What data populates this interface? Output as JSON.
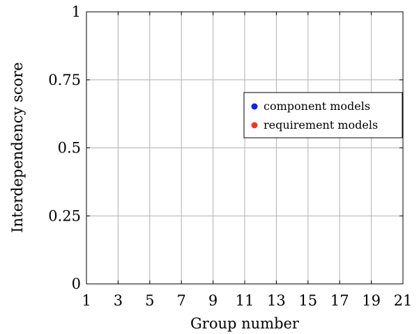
{
  "chart_data": {
    "type": "scatter",
    "title": "",
    "xlabel": "Group number",
    "ylabel": "Interdependency score",
    "xlim": [
      1,
      21
    ],
    "ylim": [
      0,
      1
    ],
    "xticks": [
      1,
      3,
      5,
      7,
      9,
      11,
      13,
      15,
      17,
      19,
      21
    ],
    "yticks": [
      0,
      0.25,
      0.5,
      0.75,
      1
    ],
    "ytick_labels": [
      "0",
      "0.25",
      "0.5",
      "0.75",
      "1"
    ],
    "grid": true,
    "legend_position": "right",
    "series": [
      {
        "name": "component models",
        "color": "#0a22f0",
        "points": []
      },
      {
        "name": "requirement models",
        "color": "#f0361c",
        "points": []
      }
    ]
  }
}
